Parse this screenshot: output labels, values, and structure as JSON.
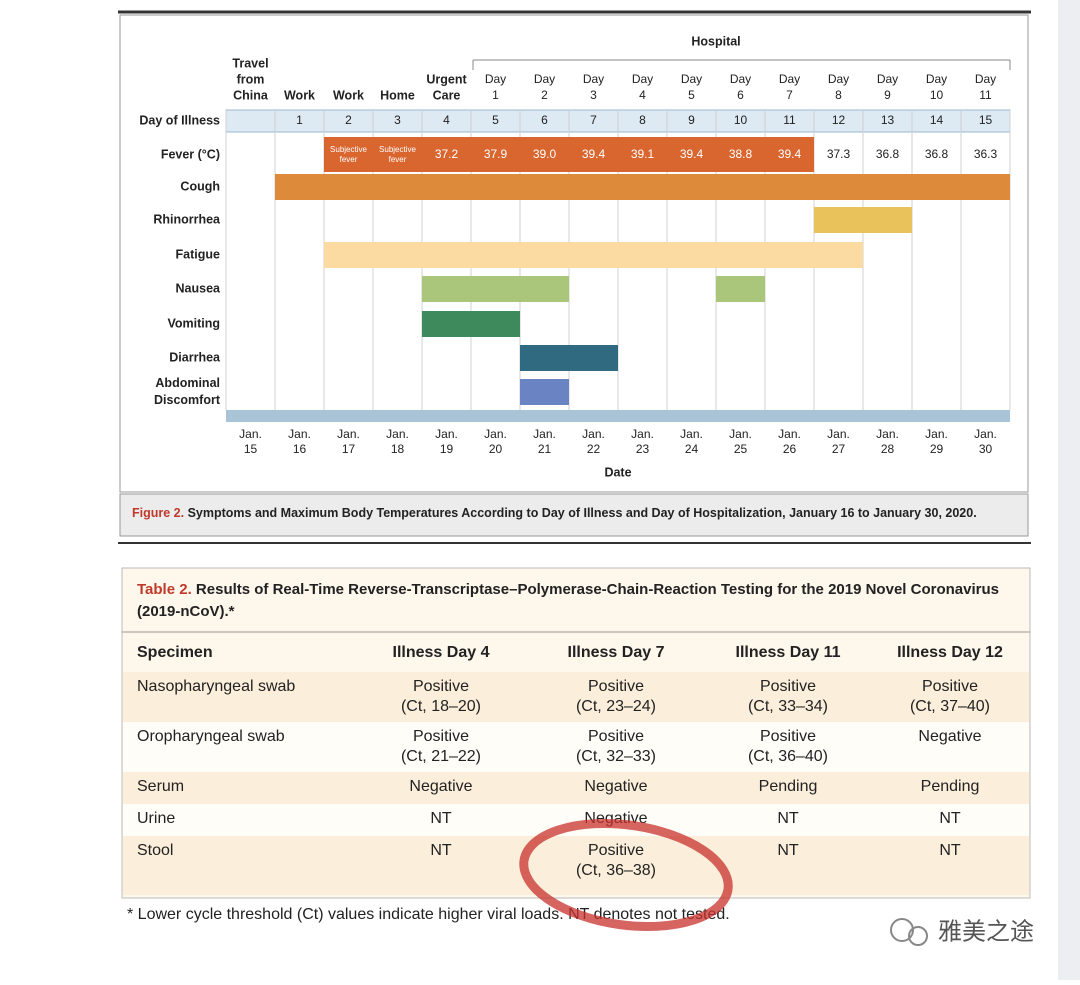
{
  "figure": {
    "hospital_label": "Hospital",
    "columns": [
      [
        "Travel",
        "from",
        "China"
      ],
      [
        "Work"
      ],
      [
        "Work"
      ],
      [
        "Home"
      ],
      [
        "Urgent",
        "Care"
      ],
      [
        "Day",
        "1"
      ],
      [
        "Day",
        "2"
      ],
      [
        "Day",
        "3"
      ],
      [
        "Day",
        "4"
      ],
      [
        "Day",
        "5"
      ],
      [
        "Day",
        "6"
      ],
      [
        "Day",
        "7"
      ],
      [
        "Day",
        "8"
      ],
      [
        "Day",
        "9"
      ],
      [
        "Day",
        "10"
      ],
      [
        "Day",
        "11"
      ]
    ],
    "day_of_illness_label": "Day of Illness",
    "day_of_illness": [
      null,
      "1",
      "2",
      "3",
      "4",
      "5",
      "6",
      "7",
      "8",
      "9",
      "10",
      "11",
      "12",
      "13",
      "14",
      "15"
    ],
    "fever_label": "Fever (°C)",
    "fever_color": "#d9652f",
    "fever": [
      null,
      null,
      {
        "text": [
          "Subjective",
          "fever"
        ],
        "highlight": true
      },
      {
        "text": [
          "Subjective",
          "fever"
        ],
        "highlight": true
      },
      {
        "text": [
          "37.2"
        ],
        "highlight": true
      },
      {
        "text": [
          "37.9"
        ],
        "highlight": true
      },
      {
        "text": [
          "39.0"
        ],
        "highlight": true
      },
      {
        "text": [
          "39.4"
        ],
        "highlight": true
      },
      {
        "text": [
          "39.1"
        ],
        "highlight": true
      },
      {
        "text": [
          "39.4"
        ],
        "highlight": true
      },
      {
        "text": [
          "38.8"
        ],
        "highlight": true
      },
      {
        "text": [
          "39.4"
        ],
        "highlight": true
      },
      {
        "text": [
          "37.3"
        ],
        "highlight": false
      },
      {
        "text": [
          "36.8"
        ],
        "highlight": false
      },
      {
        "text": [
          "36.8"
        ],
        "highlight": false
      },
      {
        "text": [
          "36.3"
        ],
        "highlight": false
      }
    ],
    "symptoms": [
      {
        "label": [
          "Cough"
        ],
        "color": "#dd8a3a",
        "spans": [
          [
            1,
            15
          ]
        ]
      },
      {
        "label": [
          "Rhinorrhea"
        ],
        "color": "#e9c25c",
        "spans": [
          [
            12,
            13
          ]
        ]
      },
      {
        "label": [
          "Fatigue"
        ],
        "color": "#fbdba2",
        "spans": [
          [
            2,
            12
          ]
        ]
      },
      {
        "label": [
          "Nausea"
        ],
        "color": "#a9c67a",
        "spans": [
          [
            4,
            6
          ],
          [
            10,
            10
          ]
        ]
      },
      {
        "label": [
          "Vomiting"
        ],
        "color": "#3f8a5c",
        "spans": [
          [
            4,
            5
          ]
        ]
      },
      {
        "label": [
          "Diarrhea"
        ],
        "color": "#2f6a80",
        "spans": [
          [
            6,
            7
          ]
        ]
      },
      {
        "label": [
          "Abdominal",
          "Discomfort"
        ],
        "color": "#6a83c2",
        "spans": [
          [
            6,
            6
          ]
        ]
      }
    ],
    "dates": [
      [
        "Jan.",
        "15"
      ],
      [
        "Jan.",
        "16"
      ],
      [
        "Jan.",
        "17"
      ],
      [
        "Jan.",
        "18"
      ],
      [
        "Jan.",
        "19"
      ],
      [
        "Jan.",
        "20"
      ],
      [
        "Jan.",
        "21"
      ],
      [
        "Jan.",
        "22"
      ],
      [
        "Jan.",
        "23"
      ],
      [
        "Jan.",
        "24"
      ],
      [
        "Jan.",
        "25"
      ],
      [
        "Jan.",
        "26"
      ],
      [
        "Jan.",
        "27"
      ],
      [
        "Jan.",
        "28"
      ],
      [
        "Jan.",
        "29"
      ],
      [
        "Jan.",
        "30"
      ]
    ],
    "x_label": "Date",
    "caption_label": "Figure 2.",
    "caption": "Symptoms and Maximum Body Temperatures According to Day of Illness and Day of Hospitalization, January 16 to January 30, 2020."
  },
  "table": {
    "label": "Table 2.",
    "title": [
      "Results of Real-Time Reverse-Transcriptase–Polymerase-Chain-Reaction Testing for the 2019 Novel Coronavirus",
      "(2019-nCoV).*"
    ],
    "header": [
      "Specimen",
      "Illness Day 4",
      "Illness Day 7",
      "Illness Day 11",
      "Illness Day 12"
    ],
    "rows": [
      [
        [
          "Nasopharyngeal swab"
        ],
        [
          "Positive",
          "(Ct, 18–20)"
        ],
        [
          "Positive",
          "(Ct, 23–24)"
        ],
        [
          "Positive",
          "(Ct, 33–34)"
        ],
        [
          "Positive",
          "(Ct, 37–40)"
        ]
      ],
      [
        [
          "Oropharyngeal swab"
        ],
        [
          "Positive",
          "(Ct, 21–22)"
        ],
        [
          "Positive",
          "(Ct, 32–33)"
        ],
        [
          "Positive",
          "(Ct, 36–40)"
        ],
        [
          "Negative"
        ]
      ],
      [
        [
          "Serum"
        ],
        [
          "Negative"
        ],
        [
          "Negative"
        ],
        [
          "Pending"
        ],
        [
          "Pending"
        ]
      ],
      [
        [
          "Urine"
        ],
        [
          "NT"
        ],
        [
          "Negative"
        ],
        [
          "NT"
        ],
        [
          "NT"
        ]
      ],
      [
        [
          "Stool"
        ],
        [
          "NT"
        ],
        [
          "Positive",
          "(Ct, 36–38)"
        ],
        [
          "NT"
        ],
        [
          "NT"
        ]
      ]
    ],
    "footnote": "* Lower cycle threshold (Ct) values indicate higher viral loads. NT denotes not tested."
  },
  "watermark": "雅美之途"
}
